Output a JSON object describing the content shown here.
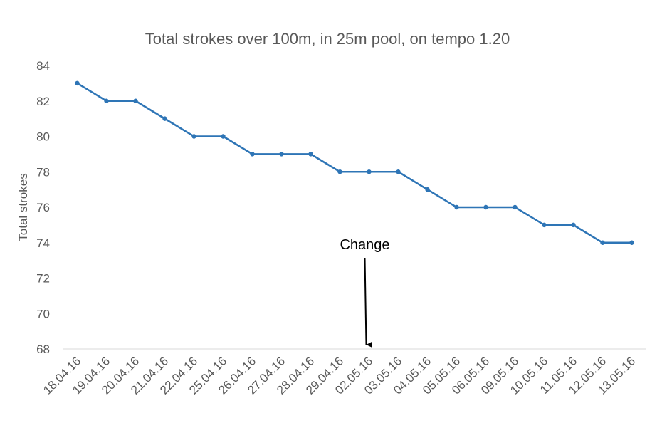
{
  "chart_data": {
    "type": "line",
    "title": "Total strokes over 100m, in 25m pool, on tempo 1.20",
    "xlabel": "",
    "ylabel": "Total strokes",
    "ylim": [
      68,
      84
    ],
    "ytick_step": 2,
    "grid": false,
    "legend": "none",
    "categories": [
      "18.04.16",
      "19.04.16",
      "20.04.16",
      "21.04.16",
      "22.04.16",
      "25.04.16",
      "26.04.16",
      "27.04.16",
      "28.04.16",
      "29.04.16",
      "02.05.16",
      "03.05.16",
      "04.05.16",
      "05.05.16",
      "06.05.16",
      "09.05.16",
      "10.05.16",
      "11.05.16",
      "12.05.16",
      "13.05.16"
    ],
    "series": [
      {
        "values": [
          83,
          82,
          82,
          81,
          80,
          80,
          79,
          79,
          79,
          78,
          78,
          78,
          77,
          76,
          76,
          76,
          75,
          75,
          74,
          74
        ],
        "color": "#2e75b6"
      }
    ],
    "annotations": [
      {
        "text": "Change",
        "x": "02.05.16",
        "arrow": "down"
      }
    ],
    "axis_color": "#d9d9d9",
    "text_color": "#595959"
  }
}
